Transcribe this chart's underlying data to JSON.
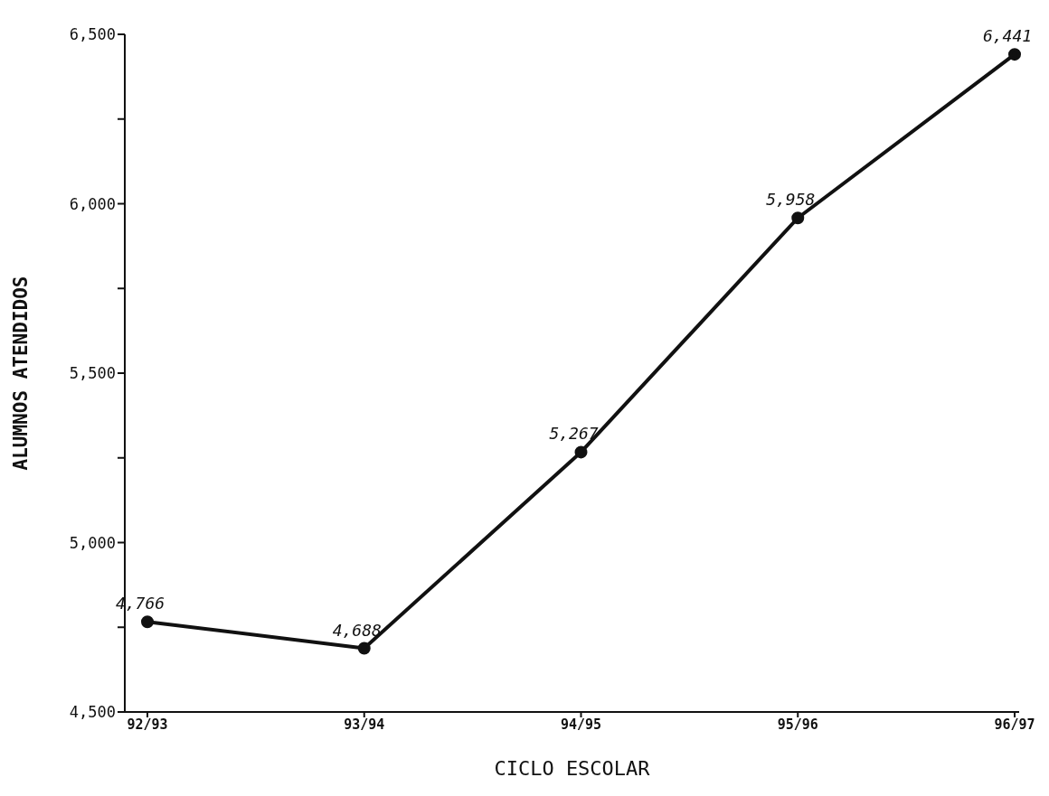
{
  "chart_data": {
    "type": "line",
    "xlabel": "CICLO ESCOLAR",
    "ylabel": "ALUMNOS ATENDIDOS",
    "categories": [
      "92/93",
      "93/94",
      "94/95",
      "95/96",
      "96/97"
    ],
    "series": [
      {
        "color": "#111111",
        "values": [
          4766,
          4688,
          5267,
          5958,
          6441
        ],
        "value_labels": [
          "4,766",
          "4,688",
          "5,267",
          "5,958",
          "6,441"
        ]
      }
    ],
    "ylim": [
      4500,
      6500
    ],
    "yticks": [
      {
        "value": 4500,
        "label": "4,500"
      },
      {
        "value": 4750,
        "label": null
      },
      {
        "value": 5000,
        "label": "5,000"
      },
      {
        "value": 5250,
        "label": null
      },
      {
        "value": 5500,
        "label": "5,500"
      },
      {
        "value": 5750,
        "label": null
      },
      {
        "value": 6000,
        "label": "6,000"
      },
      {
        "value": 6250,
        "label": null
      },
      {
        "value": 6500,
        "label": "6,500"
      }
    ],
    "grid": false,
    "legend": false,
    "marker": "circle",
    "line_style": "solid"
  }
}
